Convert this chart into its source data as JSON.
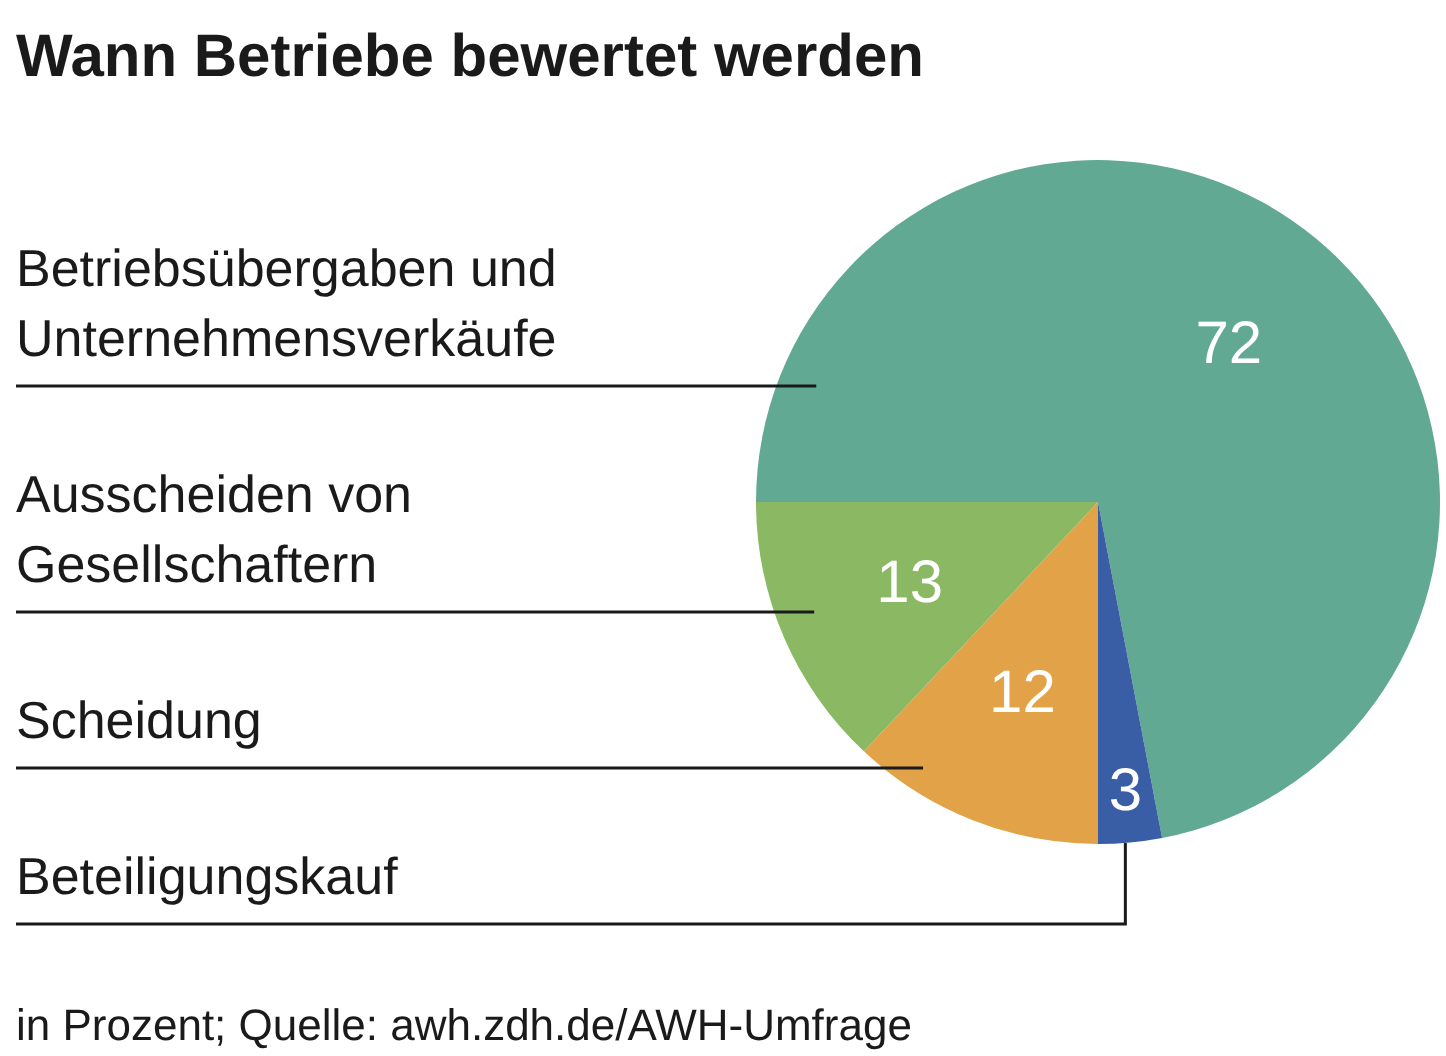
{
  "chart_data": {
    "type": "pie",
    "title": "Wann Betriebe bewertet werden",
    "categories": [
      "Betriebsübergaben und Unternehmensverkäufe",
      "Beteiligungskauf",
      "Scheidung",
      "Ausscheiden von Gesellschaftern"
    ],
    "values": [
      72,
      3,
      12,
      13
    ],
    "colors": [
      "#62a994",
      "#3a5ea5",
      "#e2a248",
      "#8bb862"
    ],
    "data_labels": true,
    "annotations": [
      "in Prozent; Quelle: awh.zdh.de/AWH-Umfrage"
    ]
  }
}
